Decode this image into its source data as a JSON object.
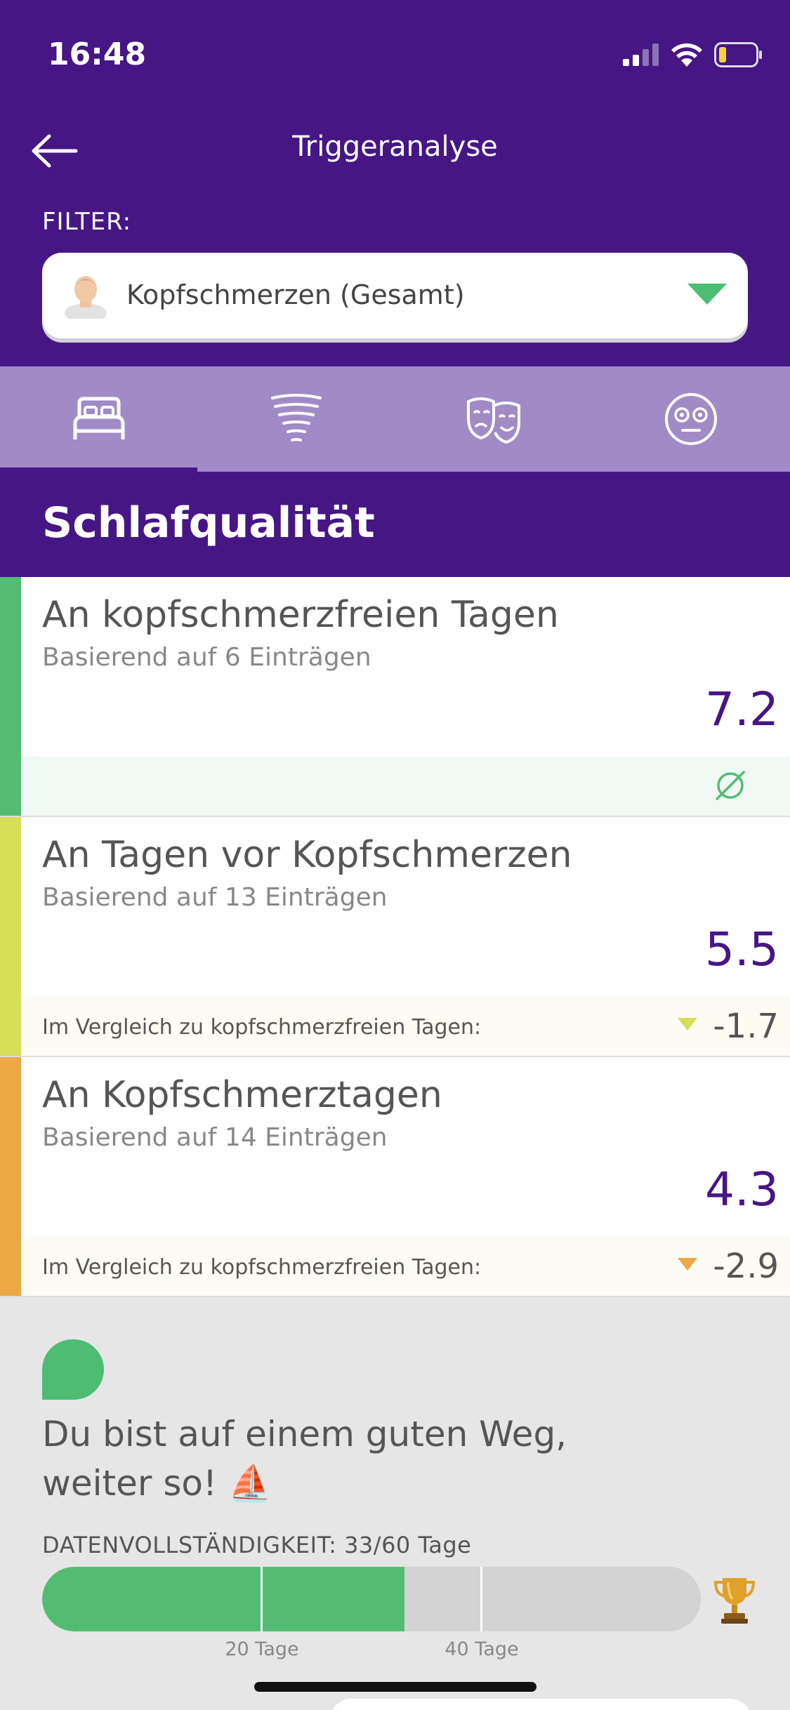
{
  "status_bar": {
    "time": "16:48"
  },
  "nav": {
    "title": "Triggeranalyse"
  },
  "filter": {
    "label": "FILTER:",
    "value": "Kopfschmerzen (Gesamt)"
  },
  "tabs": [
    {
      "icon": "bed-icon",
      "active": true
    },
    {
      "icon": "tornado-icon",
      "active": false
    },
    {
      "icon": "theater-masks-icon",
      "active": false
    },
    {
      "icon": "dizzy-face-icon",
      "active": false
    }
  ],
  "section": {
    "title": "Schlafqualität"
  },
  "cards": [
    {
      "title": "An kopfschmerzfreien Tagen",
      "sub": "Basierend auf 6 Einträgen",
      "value": "7.2",
      "footer_icon": "average-icon",
      "accent": "#52bd72"
    },
    {
      "title": "An Tagen vor Kopfschmerzen",
      "sub": "Basierend auf 13 Einträgen",
      "value": "5.5",
      "compare_label": "Im Vergleich zu kopfschmerzfreien Tagen:",
      "compare_value": "-1.7",
      "accent": "#d5df58"
    },
    {
      "title": "An Kopfschmerztagen",
      "sub": "Basierend auf 14 Einträgen",
      "value": "4.3",
      "compare_label": "Im Vergleich zu kopfschmerzfreien Tagen:",
      "compare_value": "-2.9",
      "accent": "#eba845"
    }
  ],
  "feedback": {
    "line1": "Du bist auf einem guten Weg,",
    "line2": "weiter so!",
    "emoji": "⛵"
  },
  "data_completeness": {
    "label": "DATENVOLLSTÄNDIGKEIT: 33/60 Tage",
    "filled_days": 33,
    "total_days": 60,
    "ticks": [
      "20 Tage",
      "40 Tage"
    ]
  }
}
